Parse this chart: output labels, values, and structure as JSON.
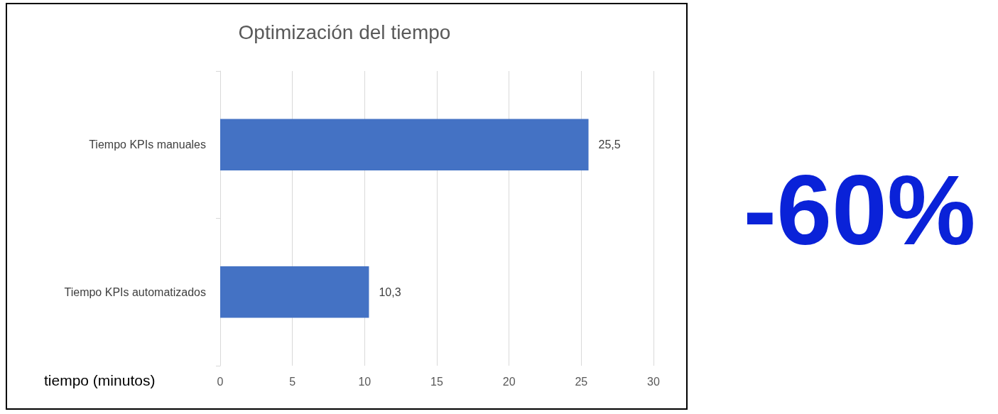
{
  "chart_data": {
    "type": "bar",
    "orientation": "horizontal",
    "title": "Optimización del tiempo",
    "xlabel": "tiempo (minutos)",
    "categories": [
      "Tiempo KPIs manuales",
      "Tiempo KPIs automatizados"
    ],
    "values": [
      25.5,
      10.3
    ],
    "value_labels": [
      "25,5",
      "10,3"
    ],
    "color": "#4472c4",
    "xlim": [
      0,
      30
    ],
    "xticks": [
      0,
      5,
      10,
      15,
      20,
      25,
      30
    ],
    "grid": "x",
    "annotations": [
      "-60%"
    ]
  }
}
